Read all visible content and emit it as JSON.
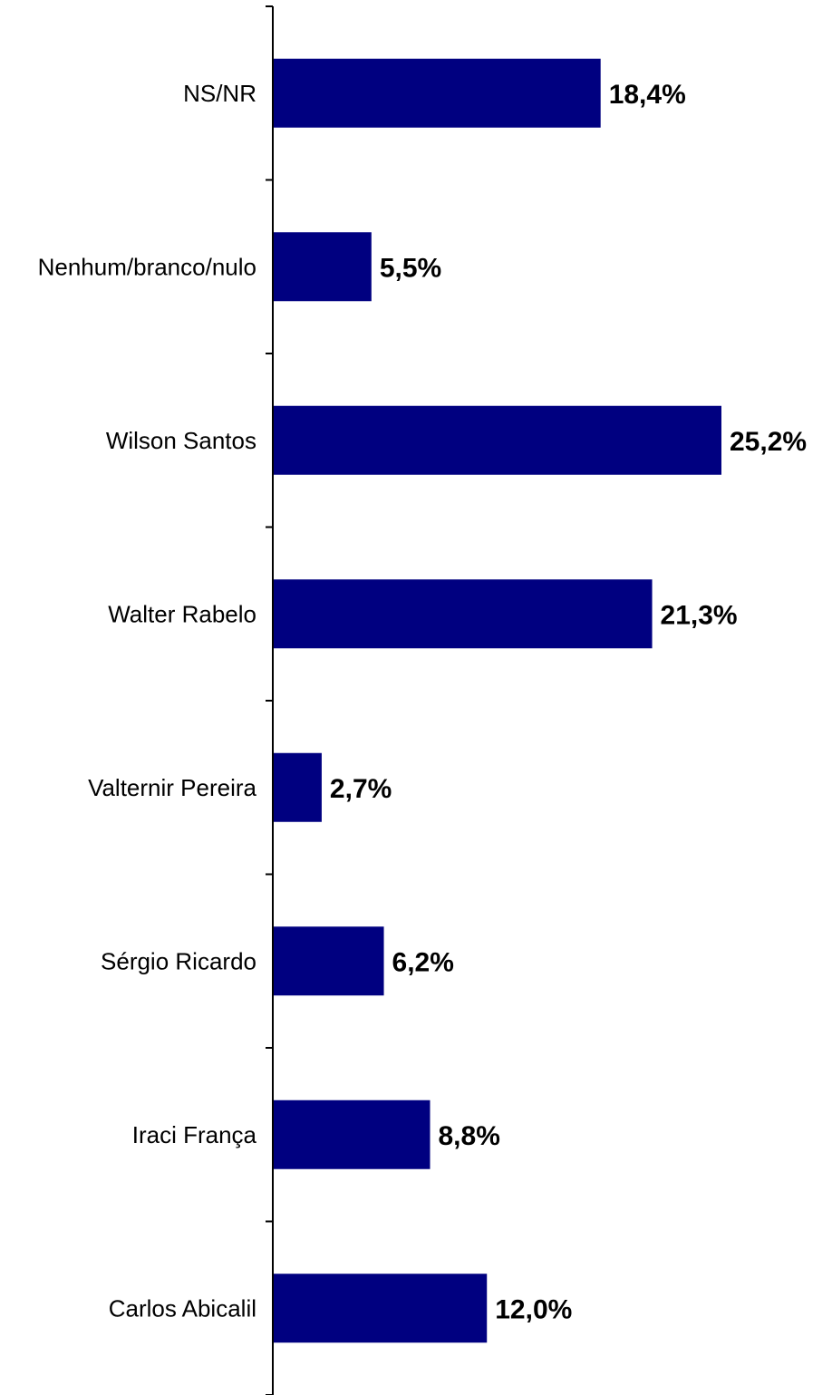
{
  "chart_data": {
    "type": "bar",
    "orientation": "horizontal",
    "categories": [
      "NS/NR",
      "Nenhum/branco/nulo",
      "Wilson Santos",
      "Walter Rabelo",
      "Valternir Pereira",
      "Sérgio Ricardo",
      "Iraci França",
      "Carlos Abicalil"
    ],
    "values": [
      18.4,
      5.5,
      25.2,
      21.3,
      2.7,
      6.2,
      8.8,
      12.0
    ],
    "value_labels": [
      "18,4%",
      "5,5%",
      "25,2%",
      "21,3%",
      "2,7%",
      "6,2%",
      "8,8%",
      "12,0%"
    ],
    "xlim": [
      0,
      25.2
    ],
    "bar_color": "#000080",
    "grid": false,
    "legend": "none"
  }
}
